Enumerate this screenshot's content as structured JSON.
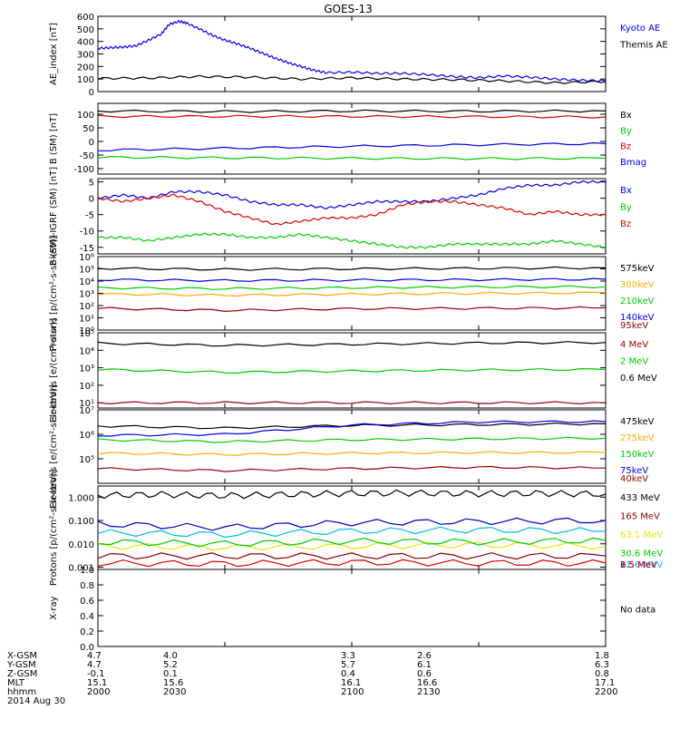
{
  "title": "GOES-13",
  "colors": {
    "black": "#000000",
    "blue": "#0000ee",
    "red": "#dd0000",
    "green": "#00cc00",
    "orange": "#ffaa00",
    "darkred": "#990000",
    "yellow": "#e6e600",
    "cyan": "#00bbee",
    "navy": "#0000bb",
    "purple": "#aa00aa",
    "maroon": "#880000"
  },
  "chart_data": [
    {
      "type": "line",
      "ylabel": "AE_index [nT]",
      "ylim": [
        0,
        600
      ],
      "yticks": [
        0,
        100,
        200,
        300,
        400,
        500,
        600
      ],
      "series": [
        {
          "name": "Kyoto AE",
          "color": "blue",
          "x": [
            2000,
            2005,
            2010,
            2015,
            2020,
            2025,
            2028,
            2032,
            2035,
            2040,
            2045,
            2050,
            2055,
            2060,
            2065,
            2070,
            2075,
            2080,
            2085,
            2090,
            2100,
            2110,
            2120,
            2130,
            2140,
            2150,
            2160,
            2170,
            2180,
            2190,
            2200
          ],
          "y": [
            345,
            350,
            355,
            365,
            410,
            460,
            535,
            560,
            545,
            500,
            450,
            410,
            380,
            345,
            305,
            265,
            230,
            200,
            170,
            150,
            155,
            145,
            145,
            135,
            120,
            110,
            125,
            115,
            100,
            90,
            85
          ]
        },
        {
          "name": "Themis AE",
          "color": "black",
          "x": [
            2000,
            2020,
            2040,
            2060,
            2080,
            2100,
            2120,
            2140,
            2160,
            2180,
            2200
          ],
          "y": [
            105,
            108,
            120,
            115,
            100,
            110,
            100,
            95,
            85,
            70,
            80
          ]
        }
      ]
    },
    {
      "type": "line",
      "ylabel": "B (SM) [nT]",
      "ylim": [
        -120,
        140
      ],
      "yticks": [
        -100,
        -50,
        0,
        50,
        100
      ],
      "series": [
        {
          "name": "Bx",
          "color": "black",
          "x": [
            2000,
            2050,
            2100,
            2150,
            2200
          ],
          "y": [
            112,
            110,
            112,
            111,
            112
          ]
        },
        {
          "name": "By",
          "color": "green",
          "x": [
            2000,
            2050,
            2100,
            2150,
            2200
          ],
          "y": [
            -58,
            -60,
            -62,
            -63,
            -62
          ]
        },
        {
          "name": "Bz",
          "color": "red",
          "x": [
            2000,
            2050,
            2100,
            2150,
            2200
          ],
          "y": [
            92,
            92,
            92,
            91,
            90
          ]
        },
        {
          "name": "Bmag",
          "color": "blue",
          "x": [
            2000,
            2050,
            2100,
            2150,
            2200
          ],
          "y": [
            -32,
            -25,
            -18,
            -12,
            -8
          ]
        }
      ]
    },
    {
      "type": "line",
      "ylabel": "B (SM)-IGRF (SM) [nT]",
      "ylim": [
        -17,
        6
      ],
      "yticks": [
        -15,
        -10,
        -5,
        0,
        5
      ],
      "series": [
        {
          "name": "Bx",
          "color": "blue",
          "x": [
            2000,
            2010,
            2020,
            2030,
            2040,
            2050,
            2060,
            2070,
            2080,
            2090,
            2100,
            2110,
            2120,
            2130,
            2140,
            2150,
            2160,
            2170,
            2180,
            2190,
            2200
          ],
          "y": [
            0,
            1,
            0,
            2,
            2,
            1,
            -1,
            -2,
            -2,
            -3,
            -2,
            -1,
            -1,
            -1,
            0,
            1,
            3,
            4,
            4,
            5,
            5
          ]
        },
        {
          "name": "By",
          "color": "green",
          "x": [
            2000,
            2010,
            2020,
            2030,
            2040,
            2050,
            2060,
            2070,
            2080,
            2090,
            2100,
            2110,
            2120,
            2130,
            2140,
            2150,
            2160,
            2170,
            2180,
            2190,
            2200
          ],
          "y": [
            -12,
            -12,
            -13,
            -12,
            -11,
            -11,
            -12,
            -12,
            -11,
            -12,
            -13,
            -14,
            -15,
            -15,
            -14,
            -14,
            -14,
            -14,
            -13,
            -14,
            -15
          ]
        },
        {
          "name": "Bz",
          "color": "red",
          "x": [
            2000,
            2010,
            2020,
            2030,
            2040,
            2050,
            2060,
            2070,
            2080,
            2090,
            2100,
            2110,
            2120,
            2130,
            2140,
            2150,
            2160,
            2170,
            2180,
            2190,
            2200
          ],
          "y": [
            0,
            -1,
            0,
            1,
            -1,
            -4,
            -6,
            -8,
            -7,
            -6,
            -6,
            -5,
            -2,
            -1,
            -1,
            -2,
            -3,
            -5,
            -4,
            -5,
            -5
          ]
        }
      ]
    },
    {
      "type": "line",
      "ylabel": "Protons [p/(cm²-s-sr-keV)]",
      "yscale": "log",
      "ylim": [
        1,
        1000000
      ],
      "yticks": [
        1,
        10,
        100,
        1000,
        10000,
        100000,
        1000000
      ],
      "ytick_labels": [
        "10⁰",
        "10¹",
        "10²",
        "10³",
        "10⁴",
        "10⁵",
        "10⁶"
      ],
      "series": [
        {
          "name": "575keV",
          "color": "black",
          "x": [
            2000,
            2050,
            2100,
            2150,
            2200
          ],
          "y": [
            110000,
            90000,
            100000,
            110000,
            120000
          ]
        },
        {
          "name": "300keV",
          "color": "orange",
          "x": [
            2000,
            2050,
            2100,
            2150,
            2200
          ],
          "y": [
            900,
            700,
            850,
            1000,
            1100
          ]
        },
        {
          "name": "210keV",
          "color": "green",
          "x": [
            2000,
            2050,
            2100,
            2150,
            2200
          ],
          "y": [
            2800,
            2400,
            2900,
            3300,
            3500
          ]
        },
        {
          "name": "140keV",
          "color": "blue",
          "x": [
            2000,
            2050,
            2100,
            2150,
            2200
          ],
          "y": [
            13000,
            11000,
            12000,
            13000,
            14000
          ]
        },
        {
          "name": "95keV",
          "color": "darkred",
          "x": [
            2000,
            2050,
            2100,
            2150,
            2200
          ],
          "y": [
            60,
            40,
            55,
            60,
            65
          ]
        }
      ]
    },
    {
      "type": "line",
      "ylabel": "Electrons [e/(cm²-s-sr)]",
      "yscale": "log",
      "ylim": [
        5,
        100000
      ],
      "yticks": [
        10,
        100,
        1000,
        10000,
        100000
      ],
      "ytick_labels": [
        "10¹",
        "10²",
        "10³",
        "10⁴",
        "10⁵"
      ],
      "series": [
        {
          "name": "4 MeV",
          "color": "darkred",
          "x": [
            2000,
            2050,
            2100,
            2150,
            2200
          ],
          "y": [
            10,
            10,
            10,
            10,
            10
          ]
        },
        {
          "name": "2 MeV",
          "color": "green",
          "x": [
            2000,
            2050,
            2100,
            2150,
            2200
          ],
          "y": [
            800,
            550,
            650,
            750,
            800
          ]
        },
        {
          "name": "0.6 MeV",
          "color": "black",
          "x": [
            2000,
            2050,
            2100,
            2150,
            2200
          ],
          "y": [
            25000,
            19000,
            22000,
            26000,
            28000
          ]
        }
      ]
    },
    {
      "type": "line",
      "ylabel": "Electrons [e/(cm²-s-sr-keV)]",
      "yscale": "log",
      "ylim": [
        10000,
        10000000
      ],
      "yticks": [
        100000,
        1000000,
        10000000
      ],
      "ytick_labels": [
        "10⁵",
        "10⁶",
        "10⁷"
      ],
      "series": [
        {
          "name": "475keV",
          "color": "black",
          "x": [
            2000,
            2050,
            2100,
            2150,
            2200
          ],
          "y": [
            2200000,
            1800000,
            2300000,
            2500000,
            2700000
          ]
        },
        {
          "name": "275keV",
          "color": "orange",
          "x": [
            2000,
            2050,
            2100,
            2150,
            2200
          ],
          "y": [
            170000,
            150000,
            170000,
            180000,
            180000
          ]
        },
        {
          "name": "150keV",
          "color": "green",
          "x": [
            2000,
            2050,
            2100,
            2150,
            2200
          ],
          "y": [
            600000,
            500000,
            600000,
            650000,
            700000
          ]
        },
        {
          "name": "75keV",
          "color": "blue",
          "x": [
            2000,
            2050,
            2100,
            2150,
            2200
          ],
          "y": [
            900000,
            1000000,
            2400000,
            3200000,
            3300000
          ]
        },
        {
          "name": "40keV",
          "color": "darkred",
          "x": [
            2000,
            2050,
            2100,
            2150,
            2200
          ],
          "y": [
            40000,
            33000,
            40000,
            45000,
            42000
          ]
        }
      ]
    },
    {
      "type": "line",
      "ylabel": "Protons [p/(cm²-s-sr-keV)]",
      "yscale": "log",
      "ylim": [
        0.0008,
        3
      ],
      "yticks": [
        0.001,
        0.01,
        0.1,
        1.0
      ],
      "ytick_labels": [
        "0.001",
        "0.010",
        "0.100",
        "1.000"
      ],
      "series": [
        {
          "name": "433 MeV",
          "color": "black",
          "x": [
            2000,
            2025,
            2050,
            2075,
            2100,
            2125,
            2150,
            2175,
            2200
          ],
          "y": [
            1.2,
            1.3,
            1.15,
            1.3,
            1.45,
            1.5,
            1.4,
            1.45,
            1.35
          ]
        },
        {
          "name": "165 MeV",
          "color": "maroon",
          "x": [
            2000,
            2050,
            2100,
            2150,
            2200
          ],
          "y": [
            0.003,
            0.003,
            0.003,
            0.003,
            0.003
          ]
        },
        {
          "name": "63.1 MeV",
          "color": "yellow",
          "x": [
            2000,
            2050,
            2100,
            2150,
            2200
          ],
          "y": [
            0.008,
            0.007,
            0.008,
            0.009,
            0.008
          ]
        },
        {
          "name": "30.6 MeV",
          "color": "green",
          "x": [
            2000,
            2050,
            2100,
            2150,
            2200
          ],
          "y": [
            0.012,
            0.01,
            0.013,
            0.012,
            0.014
          ]
        },
        {
          "name": "11.6 MeV",
          "color": "cyan",
          "x": [
            2000,
            2050,
            2100,
            2150,
            2200
          ],
          "y": [
            0.03,
            0.025,
            0.035,
            0.04,
            0.035
          ]
        },
        {
          "name": "6.5 MeV",
          "color": "navy",
          "x": [
            2000,
            2050,
            2100,
            2150,
            2200
          ],
          "y": [
            0.07,
            0.05,
            0.08,
            0.09,
            0.1
          ]
        },
        {
          "name": "2.5 MeV",
          "color": "red",
          "x": [
            2000,
            2050,
            2100,
            2150,
            2200
          ],
          "y": [
            0.0015,
            0.0014,
            0.0016,
            0.0015,
            0.0015
          ]
        }
      ]
    },
    {
      "type": "line",
      "ylabel": "X-ray",
      "ylim": [
        0,
        1
      ],
      "yticks": [
        0,
        0.2,
        0.4,
        0.6,
        0.8,
        1.0
      ],
      "ytick_labels": [
        "0.0",
        "0.2",
        "0.4",
        "0.6",
        "0.8",
        "1.0"
      ],
      "series": [],
      "note": "No data"
    }
  ],
  "orbit_table": {
    "row_labels": [
      "X-GSM",
      "Y-GSM",
      "Z-GSM",
      "MLT",
      "hhmm"
    ],
    "columns": [
      [
        "4.7",
        "4.7",
        "-0.1",
        "15.1",
        "2000"
      ],
      [
        "4.0",
        "5.2",
        "0.1",
        "15.6",
        "2030"
      ],
      [
        "3.3",
        "5.7",
        "0.4",
        "16.1",
        "2100"
      ],
      [
        "2.6",
        "6.1",
        "0.6",
        "16.6",
        "2130"
      ],
      [
        "1.8",
        "6.3",
        "0.8",
        "17.1",
        "2200"
      ]
    ],
    "date": "2014 Aug 30"
  },
  "x_range": [
    2000,
    2200
  ]
}
